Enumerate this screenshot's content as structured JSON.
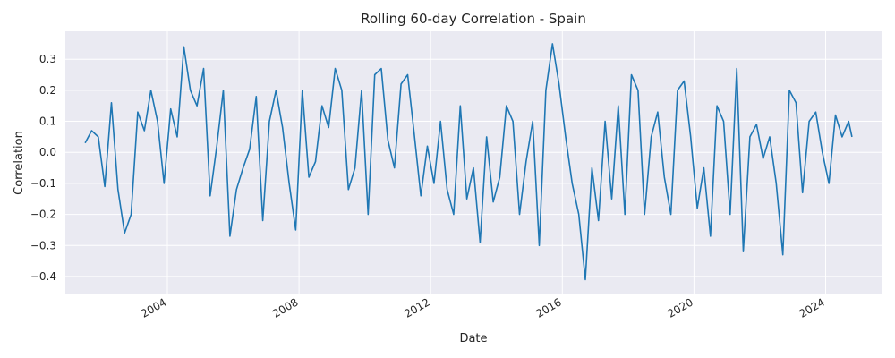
{
  "chart_data": {
    "type": "line",
    "title": "Rolling 60-day Correlation - Spain",
    "xlabel": "Date",
    "ylabel": "Correlation",
    "xlim": [
      2000.9,
      2025.7
    ],
    "ylim": [
      -0.455,
      0.39
    ],
    "x_ticks": [
      2004,
      2008,
      2012,
      2016,
      2020,
      2024
    ],
    "x_tick_labels": [
      "2004",
      "2008",
      "2012",
      "2016",
      "2020",
      "2024"
    ],
    "y_ticks": [
      -0.4,
      -0.3,
      -0.2,
      -0.1,
      0.0,
      0.1,
      0.2,
      0.3
    ],
    "y_tick_labels": [
      "−0.4",
      "−0.3",
      "−0.2",
      "−0.1",
      "0.0",
      "0.1",
      "0.2",
      "0.3"
    ],
    "grid": true,
    "line_color": "#1f77b4",
    "background_color": "#eaeaf2",
    "series": [
      {
        "x": [
          2001.5,
          2001.7,
          2001.9,
          2002.1,
          2002.3,
          2002.5,
          2002.7,
          2002.9,
          2003.1,
          2003.3,
          2003.5,
          2003.7,
          2003.9,
          2004.1,
          2004.3,
          2004.5,
          2004.7,
          2004.9,
          2005.1,
          2005.3,
          2005.5,
          2005.7,
          2005.9,
          2006.1,
          2006.3,
          2006.5,
          2006.7,
          2006.9,
          2007.1,
          2007.3,
          2007.5,
          2007.7,
          2007.9,
          2008.1,
          2008.3,
          2008.5,
          2008.7,
          2008.9,
          2009.1,
          2009.3,
          2009.5,
          2009.7,
          2009.9,
          2010.1,
          2010.3,
          2010.5,
          2010.7,
          2010.9,
          2011.1,
          2011.3,
          2011.5,
          2011.7,
          2011.9,
          2012.1,
          2012.3,
          2012.5,
          2012.7,
          2012.9,
          2013.1,
          2013.3,
          2013.5,
          2013.7,
          2013.9,
          2014.1,
          2014.3,
          2014.5,
          2014.7,
          2014.9,
          2015.1,
          2015.3,
          2015.5,
          2015.7,
          2015.9,
          2016.1,
          2016.3,
          2016.5,
          2016.7,
          2016.9,
          2017.1,
          2017.3,
          2017.5,
          2017.7,
          2017.9,
          2018.1,
          2018.3,
          2018.5,
          2018.7,
          2018.9,
          2019.1,
          2019.3,
          2019.5,
          2019.7,
          2019.9,
          2020.1,
          2020.3,
          2020.5,
          2020.7,
          2020.9,
          2021.1,
          2021.3,
          2021.5,
          2021.7,
          2021.9,
          2022.1,
          2022.3,
          2022.5,
          2022.7,
          2022.9,
          2023.1,
          2023.3,
          2023.5,
          2023.7,
          2023.9,
          2024.1,
          2024.3,
          2024.5,
          2024.7,
          2024.8
        ],
        "y": [
          0.03,
          0.07,
          0.05,
          -0.11,
          0.16,
          -0.12,
          -0.26,
          -0.2,
          0.13,
          0.07,
          0.2,
          0.1,
          -0.1,
          0.14,
          0.05,
          0.34,
          0.2,
          0.15,
          0.27,
          -0.14,
          0.02,
          0.2,
          -0.27,
          -0.12,
          -0.05,
          0.01,
          0.18,
          -0.22,
          0.1,
          0.2,
          0.08,
          -0.1,
          -0.25,
          0.2,
          -0.08,
          -0.03,
          0.15,
          0.08,
          0.27,
          0.2,
          -0.12,
          -0.05,
          0.2,
          -0.2,
          0.25,
          0.27,
          0.04,
          -0.05,
          0.22,
          0.25,
          0.06,
          -0.14,
          0.02,
          -0.1,
          0.1,
          -0.12,
          -0.2,
          0.15,
          -0.15,
          -0.05,
          -0.29,
          0.05,
          -0.16,
          -0.08,
          0.15,
          0.1,
          -0.2,
          -0.03,
          0.1,
          -0.3,
          0.2,
          0.35,
          0.22,
          0.05,
          -0.1,
          -0.2,
          -0.41,
          -0.05,
          -0.22,
          0.1,
          -0.15,
          0.15,
          -0.2,
          0.25,
          0.2,
          -0.2,
          0.05,
          0.13,
          -0.08,
          -0.2,
          0.2,
          0.23,
          0.05,
          -0.18,
          -0.05,
          -0.27,
          0.15,
          0.1,
          -0.2,
          0.27,
          -0.32,
          0.05,
          0.09,
          -0.02,
          0.05,
          -0.1,
          -0.33,
          0.2,
          0.16,
          -0.13,
          0.1,
          0.13,
          0.0,
          -0.1,
          0.12,
          0.05,
          0.1,
          0.05
        ]
      }
    ]
  }
}
